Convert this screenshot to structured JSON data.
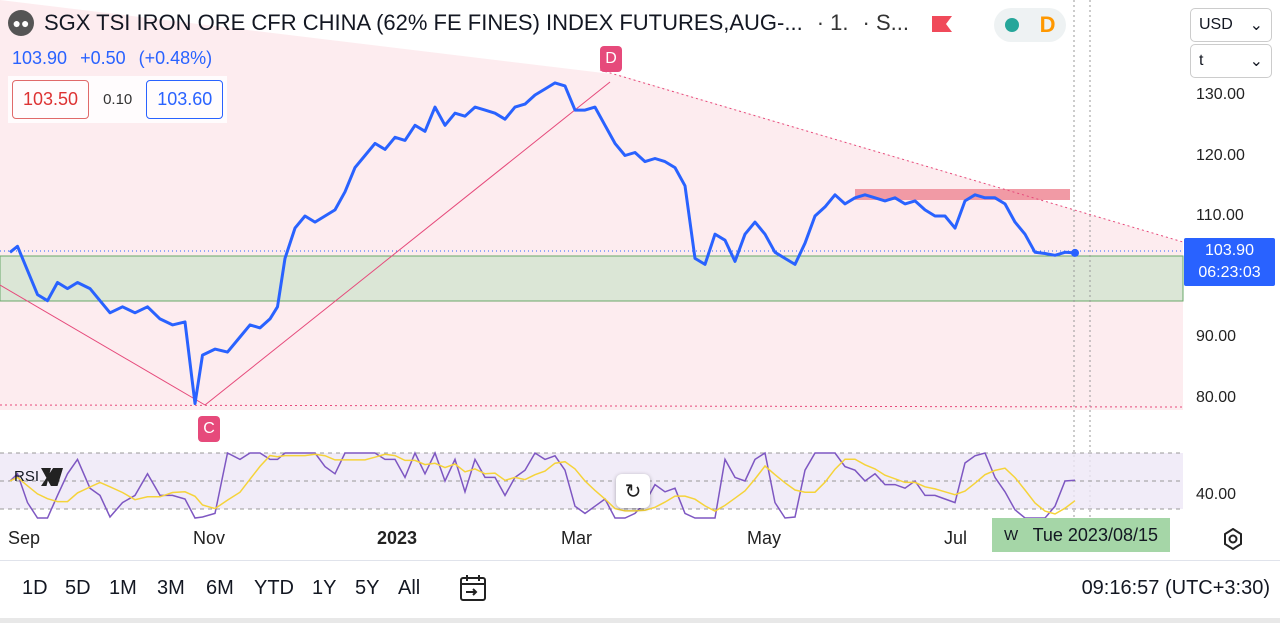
{
  "header": {
    "title": "SGX TSI IRON ORE CFR CHINA (62% FE FINES) INDEX FUTURES,AUG-...",
    "interval": "· 1.",
    "exchange": "· S...",
    "status_letter": "D"
  },
  "quote": {
    "last": "103.90",
    "change": "+0.50",
    "change_pct": "(+0.48%)",
    "bid": "103.50",
    "spread": "0.10",
    "ask": "103.60"
  },
  "selectors": {
    "currency": "USD",
    "unit": "t"
  },
  "price_tag": {
    "price": "103.90",
    "countdown": "06:23:03"
  },
  "markers": {
    "c": "C",
    "d": "D"
  },
  "rsi": {
    "label": "RSI",
    "axis_label": "40.00"
  },
  "xaxis": {
    "labels": [
      "Sep",
      "Nov",
      "2023",
      "Mar",
      "May",
      "Jul"
    ],
    "hover_date": "Tue 2023/08/15",
    "hover_prefix": "W"
  },
  "ranges": [
    "1D",
    "5D",
    "1M",
    "3M",
    "6M",
    "YTD",
    "1Y",
    "5Y",
    "All"
  ],
  "clock": "09:16:57 (UTC+3:30)",
  "colors": {
    "line": "#2962ff",
    "rsi": "#7e57c2",
    "rsi_ma": "#f5d33a",
    "marker": "#e64a7b",
    "zone": "#a5d6a7"
  },
  "chart_data": {
    "type": "line",
    "series": [
      {
        "values": [
          [
            0,
            104
          ],
          [
            3,
            105
          ],
          [
            7,
            101
          ],
          [
            11,
            97
          ],
          [
            15,
            96
          ],
          [
            19,
            99
          ],
          [
            23,
            98
          ],
          [
            27,
            99
          ],
          [
            32,
            98
          ],
          [
            36,
            96
          ],
          [
            40,
            94
          ],
          [
            45,
            95
          ],
          [
            50,
            94
          ],
          [
            55,
            95
          ],
          [
            60,
            93
          ],
          [
            65,
            92
          ],
          [
            70,
            92.5
          ],
          [
            74,
            79
          ],
          [
            77,
            87
          ],
          [
            82,
            88
          ],
          [
            87,
            87.5
          ],
          [
            92,
            90
          ],
          [
            96,
            92
          ],
          [
            100,
            91.5
          ],
          [
            104,
            93
          ],
          [
            107,
            95
          ],
          [
            110,
            103
          ],
          [
            114,
            108
          ],
          [
            118,
            110
          ],
          [
            122,
            109
          ],
          [
            126,
            110
          ],
          [
            130,
            111
          ],
          [
            134,
            114
          ],
          [
            138,
            118
          ],
          [
            142,
            120
          ],
          [
            146,
            122
          ],
          [
            150,
            121
          ],
          [
            154,
            123
          ],
          [
            158,
            122.5
          ],
          [
            162,
            125
          ],
          [
            166,
            124
          ],
          [
            170,
            128
          ],
          [
            174,
            125
          ],
          [
            178,
            127
          ],
          [
            182,
            126.5
          ],
          [
            186,
            128
          ],
          [
            190,
            127.5
          ],
          [
            194,
            127
          ],
          [
            198,
            126
          ],
          [
            202,
            128
          ],
          [
            206,
            128.5
          ],
          [
            210,
            130
          ],
          [
            214,
            131
          ],
          [
            218,
            132
          ],
          [
            222,
            131.5
          ],
          [
            226,
            127.5
          ],
          [
            230,
            127.5
          ],
          [
            234,
            128
          ],
          [
            238,
            125
          ],
          [
            242,
            122
          ],
          [
            246,
            120
          ],
          [
            250,
            120.5
          ],
          [
            254,
            119
          ],
          [
            258,
            119.5
          ],
          [
            262,
            119
          ],
          [
            266,
            118
          ],
          [
            270,
            115
          ],
          [
            274,
            103
          ],
          [
            278,
            102
          ],
          [
            282,
            107
          ],
          [
            286,
            106
          ],
          [
            290,
            102.5
          ],
          [
            294,
            107
          ],
          [
            298,
            109
          ],
          [
            302,
            107
          ],
          [
            306,
            104
          ],
          [
            310,
            103
          ],
          [
            314,
            102
          ],
          [
            318,
            105.5
          ],
          [
            322,
            110
          ],
          [
            326,
            111.5
          ],
          [
            330,
            113.5
          ],
          [
            334,
            112
          ],
          [
            338,
            113
          ],
          [
            342,
            113.5
          ],
          [
            346,
            113
          ],
          [
            350,
            112.5
          ],
          [
            354,
            113
          ],
          [
            358,
            112
          ],
          [
            362,
            112.5
          ],
          [
            366,
            111
          ],
          [
            370,
            110
          ],
          [
            374,
            110
          ],
          [
            378,
            108
          ],
          [
            382,
            112.5
          ],
          [
            386,
            113.5
          ],
          [
            390,
            113
          ],
          [
            394,
            113
          ],
          [
            398,
            112
          ],
          [
            402,
            109
          ],
          [
            406,
            107
          ],
          [
            410,
            104
          ],
          [
            414,
            103.8
          ],
          [
            418,
            103.5
          ],
          [
            422,
            104
          ],
          [
            426,
            103.9
          ]
        ]
      }
    ],
    "x_ticks": [
      [
        "Sep",
        0
      ],
      [
        "Nov",
        75
      ],
      [
        "2023",
        148
      ],
      [
        "Mar",
        220
      ],
      [
        "May",
        293
      ],
      [
        "Jul",
        365
      ]
    ],
    "y_ticks": [
      80,
      90,
      100,
      110,
      120,
      130
    ],
    "ylim": [
      75,
      135
    ],
    "current_price": 103.9,
    "annotations": {
      "support_zone": [
        95.5,
        103.2
      ],
      "resistance_zone": [
        112.5,
        113.8
      ],
      "c_point": [
        74,
        79
      ],
      "d_point": [
        216,
        133
      ]
    }
  }
}
